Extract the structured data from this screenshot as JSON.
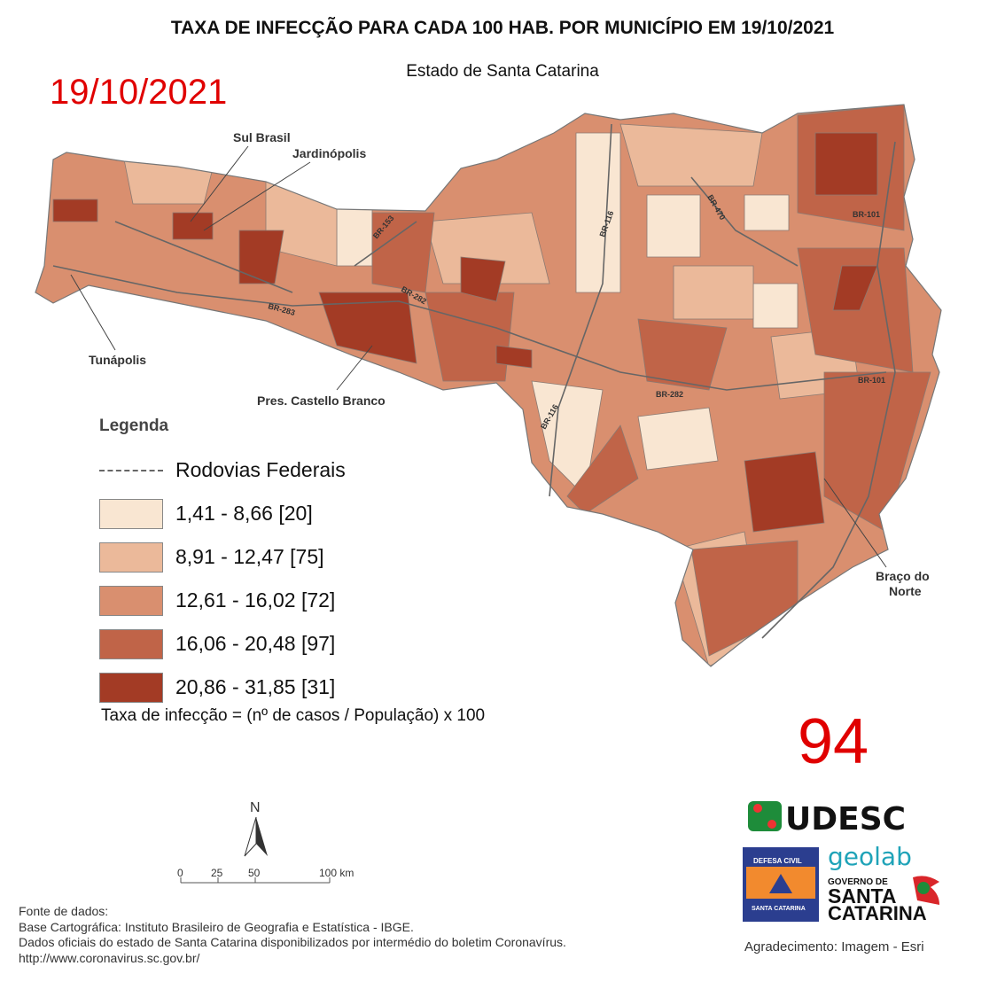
{
  "title": "TAXA DE INFECÇÃO PARA CADA 100 HAB. POR MUNICÍPIO EM 19/10/2021",
  "subtitle": "Estado de Santa Catarina",
  "date_overlay": "19/10/2021",
  "number_overlay": "94",
  "map_labels": [
    "Sul Brasil",
    "Jardinópolis",
    "Tunápolis",
    "Pres. Castello Branco",
    "Braço do",
    "Norte"
  ],
  "highway_labels": [
    "BR-153",
    "BR-282",
    "BR-283",
    "BR-116",
    "BR-470",
    "BR-101",
    "BR-282",
    "BR-116",
    "BR-101"
  ],
  "legend": {
    "title": "Legenda",
    "roads_label": "Rodovias Federais",
    "classes": [
      {
        "label": "1,41 - 8,66 [20]",
        "color": "#f9e6d2"
      },
      {
        "label": "8,91 - 12,47 [75]",
        "color": "#ebb99a"
      },
      {
        "label": "12,61 - 16,02 [72]",
        "color": "#d98f6f"
      },
      {
        "label": "16,06 - 20,48 [97]",
        "color": "#c06448"
      },
      {
        "label": "20,86 - 31,85 [31]",
        "color": "#a33b25"
      }
    ],
    "formula": "Taxa de infecção = (nº de casos / População) x 100"
  },
  "north": "N",
  "scale": {
    "ticks": [
      "0",
      "25",
      "50",
      "100 km"
    ]
  },
  "sources": [
    "Fonte de dados:",
    "Base Cartográfica: Instituto Brasileiro de Geografia e Estatística - IBGE.",
    "Dados oficiais do estado de Santa Catarina disponibilizados por intermédio do boletim Coronavírus.",
    "http://www.coronavirus.sc.gov.br/"
  ],
  "logos": {
    "udesc": "UDESC",
    "defesa_top": "DEFESA CIVIL",
    "defesa_bottom": "SANTA CATARINA",
    "geolab": "geolab",
    "gov1": "GOVERNO DE",
    "gov2": "SANTA",
    "gov3": "CATARINA"
  },
  "credit": "Agradecimento: Imagem - Esri"
}
